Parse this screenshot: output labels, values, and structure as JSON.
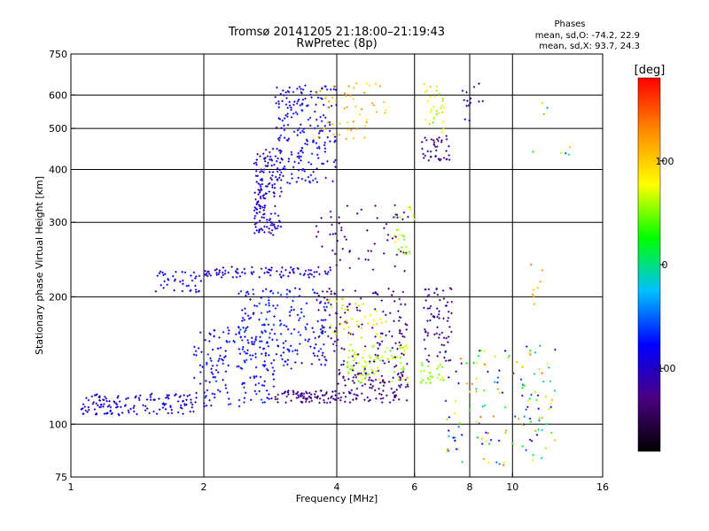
{
  "chart_data": {
    "type": "scatter",
    "title": "Tromsø 20141205 21:18:00–21:19:43",
    "subtitle": "RwPretec (8p)",
    "phase_box": {
      "heading": "Phases",
      "line_o": "mean, sd,O: -74.2, 22.9",
      "line_x": "mean, sd,X:  93.7, 24.3"
    },
    "xlabel": "Frequency [MHz]",
    "ylabel": "Stationary phase Virtual Height [km]",
    "x_scale": "log",
    "y_scale": "log",
    "xlim": [
      1,
      16
    ],
    "ylim": [
      75,
      750
    ],
    "x_ticks": [
      1,
      2,
      4,
      6,
      8,
      10,
      16
    ],
    "y_ticks": [
      75,
      100,
      200,
      300,
      400,
      500,
      600,
      750
    ],
    "x_gridlines": [
      2,
      4,
      6,
      8,
      10
    ],
    "y_gridlines": [
      100,
      200,
      300,
      400,
      500,
      600
    ],
    "grid": true,
    "colorbar": {
      "label": "[deg]",
      "range": [
        -180,
        180
      ],
      "ticks": [
        100,
        0,
        -100
      ],
      "tick_labels": [
        "100",
        "0",
        "-100"
      ],
      "colors": [
        "#000000",
        "#4b0082",
        "#0000ff",
        "#00bfff",
        "#00ff00",
        "#ffff00",
        "#ff8c00",
        "#ff0000"
      ]
    },
    "clusters": [
      {
        "f": [
          1.05,
          1.9
        ],
        "h": [
          105,
          118
        ],
        "phase": [
          -110,
          -75
        ],
        "n": 140
      },
      {
        "f": [
          1.9,
          2.9
        ],
        "h": [
          110,
          170
        ],
        "phase": [
          -100,
          -60
        ],
        "n": 160
      },
      {
        "f": [
          2.9,
          4.0
        ],
        "h": [
          112,
          120
        ],
        "phase": [
          -140,
          -110
        ],
        "n": 80
      },
      {
        "f": [
          4.0,
          5.8
        ],
        "h": [
          112,
          130
        ],
        "phase": [
          -140,
          -110
        ],
        "n": 90
      },
      {
        "f": [
          4.2,
          5.8
        ],
        "h": [
          125,
          155
        ],
        "phase": [
          40,
          80
        ],
        "n": 90
      },
      {
        "f": [
          1.55,
          2.0
        ],
        "h": [
          205,
          230
        ],
        "phase": [
          -100,
          -70
        ],
        "n": 40
      },
      {
        "f": [
          2.0,
          3.9
        ],
        "h": [
          222,
          236
        ],
        "phase": [
          -120,
          -70
        ],
        "n": 90
      },
      {
        "f": [
          2.4,
          3.8
        ],
        "h": [
          135,
          210
        ],
        "phase": [
          -90,
          -60
        ],
        "n": 200
      },
      {
        "f": [
          3.6,
          5.8
        ],
        "h": [
          130,
          210
        ],
        "phase": [
          -140,
          -110
        ],
        "n": 150
      },
      {
        "f": [
          3.8,
          5.2
        ],
        "h": [
          160,
          200
        ],
        "phase": [
          60,
          100
        ],
        "n": 40
      },
      {
        "f": [
          2.6,
          3.0
        ],
        "h": [
          280,
          450
        ],
        "phase": [
          -120,
          -70
        ],
        "n": 160
      },
      {
        "f": [
          2.9,
          4.0
        ],
        "h": [
          370,
          640
        ],
        "phase": [
          -110,
          -65
        ],
        "n": 200
      },
      {
        "f": [
          3.6,
          5.2
        ],
        "h": [
          470,
          640
        ],
        "phase": [
          80,
          130
        ],
        "n": 50
      },
      {
        "f": [
          3.5,
          5.8
        ],
        "h": [
          230,
          330
        ],
        "phase": [
          -140,
          -110
        ],
        "n": 60
      },
      {
        "f": [
          5.4,
          6.0
        ],
        "h": [
          250,
          330
        ],
        "phase": [
          40,
          80
        ],
        "n": 25
      },
      {
        "f": [
          6.2,
          7.2
        ],
        "h": [
          420,
          480
        ],
        "phase": [
          -140,
          -110
        ],
        "n": 40
      },
      {
        "f": [
          6.3,
          7.0
        ],
        "h": [
          470,
          640
        ],
        "phase": [
          40,
          110
        ],
        "n": 30
      },
      {
        "f": [
          6.3,
          7.3
        ],
        "h": [
          140,
          210
        ],
        "phase": [
          -140,
          -110
        ],
        "n": 70
      },
      {
        "f": [
          6.2,
          7.0
        ],
        "h": [
          125,
          140
        ],
        "phase": [
          40,
          70
        ],
        "n": 25
      },
      {
        "f": [
          7.0,
          11.8
        ],
        "h": [
          80,
          150
        ],
        "phase": [
          -120,
          150
        ],
        "n": 110
      },
      {
        "f": [
          7.6,
          8.6
        ],
        "h": [
          520,
          660
        ],
        "phase": [
          -120,
          -90
        ],
        "n": 15
      },
      {
        "f": [
          10.5,
          12.5
        ],
        "h": [
          85,
          160
        ],
        "phase": [
          -110,
          130
        ],
        "n": 35
      },
      {
        "f": [
          11.0,
          13.5
        ],
        "h": [
          410,
          580
        ],
        "phase": [
          -110,
          150
        ],
        "n": 8
      },
      {
        "f": [
          11.0,
          12.0
        ],
        "h": [
          190,
          250
        ],
        "phase": [
          100,
          140
        ],
        "n": 8
      }
    ]
  }
}
